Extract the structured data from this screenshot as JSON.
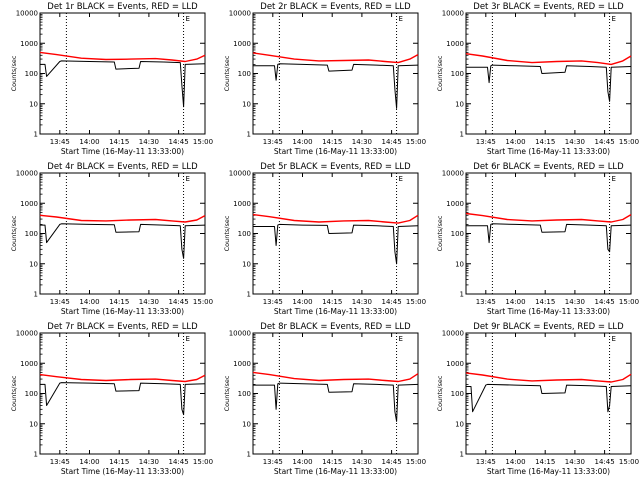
{
  "chart_data": [
    {
      "type": "line",
      "title": "Det 1r BLACK = Events, RED = LLD",
      "xlabel": "Start Time (16-May-11 13:33:00)",
      "ylabel": "Counts/sec",
      "yscale": "log",
      "ylim": [
        1,
        10000
      ],
      "y_tick_labels": [
        "1",
        "10",
        "100",
        "1000",
        "10000"
      ],
      "xlim": [
        0,
        100
      ],
      "x_tick_labels": [
        "13:45",
        "14:00",
        "14:15",
        "14:30",
        "14:45",
        "15:00"
      ],
      "x_tick_positions": [
        12,
        30,
        48,
        66,
        84,
        102
      ],
      "vlines": [
        16,
        87
      ],
      "marker": "E",
      "series": [
        {
          "name": "BLACK = Events",
          "color": "#000000",
          "x": [
            0,
            3,
            4,
            12,
            13,
            30,
            45,
            46,
            60,
            61,
            75,
            85,
            86,
            87,
            88,
            100
          ],
          "y": [
            200,
            200,
            80,
            250,
            260,
            250,
            240,
            140,
            150,
            250,
            240,
            230,
            40,
            8,
            200,
            210
          ]
        },
        {
          "name": "RED = LLD",
          "color": "#ff0000",
          "x": [
            0,
            10,
            25,
            40,
            55,
            70,
            80,
            88,
            95,
            100
          ],
          "y": [
            500,
            420,
            320,
            290,
            300,
            310,
            280,
            250,
            300,
            400
          ]
        }
      ]
    },
    {
      "type": "line",
      "title": "Det 2r BLACK = Events, RED = LLD",
      "xlabel": "Start Time (16-May-11 13:33:00)",
      "ylabel": "Counts/sec",
      "yscale": "log",
      "ylim": [
        1,
        10000
      ],
      "y_tick_labels": [
        "1",
        "10",
        "100",
        "1000",
        "10000"
      ],
      "xlim": [
        0,
        100
      ],
      "x_tick_labels": [
        "13:45",
        "14:00",
        "14:15",
        "14:30",
        "14:45",
        "15:00"
      ],
      "x_tick_positions": [
        12,
        30,
        48,
        66,
        84,
        102
      ],
      "vlines": [
        16,
        87
      ],
      "marker": "E",
      "series": [
        {
          "name": "BLACK = Events",
          "color": "#000000",
          "x": [
            0,
            13,
            14,
            15,
            16,
            30,
            45,
            46,
            60,
            61,
            75,
            85,
            86,
            87,
            88,
            100
          ],
          "y": [
            180,
            180,
            60,
            200,
            210,
            200,
            190,
            120,
            130,
            200,
            190,
            180,
            30,
            7,
            180,
            190
          ]
        },
        {
          "name": "RED = LLD",
          "color": "#ff0000",
          "x": [
            0,
            10,
            25,
            40,
            55,
            70,
            80,
            88,
            95,
            100
          ],
          "y": [
            480,
            400,
            300,
            260,
            270,
            280,
            250,
            230,
            300,
            420
          ]
        }
      ]
    },
    {
      "type": "line",
      "title": "Det 3r BLACK = Events, RED = LLD",
      "xlabel": "Start Time (16-May-11 13:33:00)",
      "ylabel": "Counts/sec",
      "yscale": "log",
      "ylim": [
        1,
        10000
      ],
      "y_tick_labels": [
        "1",
        "10",
        "100",
        "1000",
        "10000"
      ],
      "xlim": [
        0,
        100
      ],
      "x_tick_labels": [
        "13:45",
        "14:00",
        "14:15",
        "14:30",
        "14:45",
        "15:00"
      ],
      "x_tick_positions": [
        12,
        30,
        48,
        66,
        84,
        102
      ],
      "vlines": [
        16,
        87
      ],
      "marker": "E",
      "series": [
        {
          "name": "BLACK = Events",
          "color": "#000000",
          "x": [
            0,
            13,
            14,
            15,
            16,
            30,
            45,
            46,
            60,
            61,
            75,
            85,
            86,
            87,
            88,
            100
          ],
          "y": [
            160,
            160,
            50,
            180,
            190,
            180,
            170,
            100,
            110,
            180,
            170,
            160,
            25,
            12,
            160,
            170
          ]
        },
        {
          "name": "RED = LLD",
          "color": "#ff0000",
          "x": [
            0,
            10,
            25,
            40,
            55,
            70,
            80,
            88,
            95,
            100
          ],
          "y": [
            450,
            380,
            270,
            230,
            250,
            260,
            230,
            200,
            260,
            380
          ]
        }
      ]
    },
    {
      "type": "line",
      "title": "Det 4r BLACK = Events, RED = LLD",
      "xlabel": "Start Time (16-May-11 13:33:00)",
      "ylabel": "Counts/sec",
      "yscale": "log",
      "ylim": [
        1,
        10000
      ],
      "y_tick_labels": [
        "1",
        "10",
        "100",
        "1000",
        "10000"
      ],
      "xlim": [
        0,
        100
      ],
      "x_tick_labels": [
        "13:45",
        "14:00",
        "14:15",
        "14:30",
        "14:45",
        "15:00"
      ],
      "x_tick_positions": [
        12,
        30,
        48,
        66,
        84,
        102
      ],
      "vlines": [
        16,
        87
      ],
      "marker": "E",
      "series": [
        {
          "name": "BLACK = Events",
          "color": "#000000",
          "x": [
            0,
            3,
            4,
            12,
            13,
            30,
            45,
            46,
            60,
            61,
            75,
            85,
            86,
            87,
            88,
            100
          ],
          "y": [
            190,
            190,
            50,
            200,
            210,
            200,
            195,
            110,
            115,
            200,
            190,
            180,
            30,
            15,
            180,
            190
          ]
        },
        {
          "name": "RED = LLD",
          "color": "#ff0000",
          "x": [
            0,
            10,
            25,
            40,
            55,
            70,
            80,
            88,
            95,
            100
          ],
          "y": [
            400,
            350,
            270,
            260,
            280,
            290,
            260,
            240,
            280,
            390
          ]
        }
      ]
    },
    {
      "type": "line",
      "title": "Det 5r BLACK = Events, RED = LLD",
      "xlabel": "Start Time (16-May-11 13:33:00)",
      "ylabel": "Counts/sec",
      "yscale": "log",
      "ylim": [
        1,
        10000
      ],
      "y_tick_labels": [
        "1",
        "10",
        "100",
        "1000",
        "10000"
      ],
      "xlim": [
        0,
        100
      ],
      "x_tick_labels": [
        "13:45",
        "14:00",
        "14:15",
        "14:30",
        "14:45",
        "15:00"
      ],
      "x_tick_positions": [
        12,
        30,
        48,
        66,
        84,
        102
      ],
      "vlines": [
        16,
        87
      ],
      "marker": "E",
      "series": [
        {
          "name": "BLACK = Events",
          "color": "#000000",
          "x": [
            0,
            13,
            14,
            15,
            16,
            30,
            45,
            46,
            60,
            61,
            75,
            85,
            86,
            87,
            88,
            100
          ],
          "y": [
            170,
            170,
            40,
            190,
            200,
            190,
            185,
            100,
            105,
            190,
            180,
            170,
            25,
            10,
            170,
            180
          ]
        },
        {
          "name": "RED = LLD",
          "color": "#ff0000",
          "x": [
            0,
            10,
            25,
            40,
            55,
            70,
            80,
            88,
            95,
            100
          ],
          "y": [
            420,
            360,
            270,
            240,
            260,
            270,
            240,
            220,
            270,
            400
          ]
        }
      ]
    },
    {
      "type": "line",
      "title": "Det 6r BLACK = Events, RED = LLD",
      "xlabel": "Start Time (16-May-11 13:33:00)",
      "ylabel": "Counts/sec",
      "yscale": "log",
      "ylim": [
        1,
        10000
      ],
      "y_tick_labels": [
        "1",
        "10",
        "100",
        "1000",
        "10000"
      ],
      "xlim": [
        0,
        100
      ],
      "x_tick_labels": [
        "13:45",
        "14:00",
        "14:15",
        "14:30",
        "14:45",
        "15:00"
      ],
      "x_tick_positions": [
        12,
        30,
        48,
        66,
        84,
        102
      ],
      "vlines": [
        16,
        87
      ],
      "marker": "E",
      "series": [
        {
          "name": "BLACK = Events",
          "color": "#000000",
          "x": [
            0,
            13,
            14,
            15,
            16,
            30,
            45,
            46,
            60,
            61,
            75,
            85,
            86,
            87,
            88,
            100
          ],
          "y": [
            180,
            180,
            50,
            200,
            210,
            200,
            190,
            110,
            115,
            200,
            190,
            180,
            30,
            25,
            180,
            190
          ]
        },
        {
          "name": "RED = LLD",
          "color": "#ff0000",
          "x": [
            0,
            10,
            25,
            40,
            55,
            70,
            80,
            88,
            95,
            100
          ],
          "y": [
            460,
            390,
            290,
            260,
            280,
            290,
            260,
            240,
            290,
            420
          ]
        }
      ]
    },
    {
      "type": "line",
      "title": "Det 7r BLACK = Events, RED = LLD",
      "xlabel": "Start Time (16-May-11 13:33:00)",
      "ylabel": "Counts/sec",
      "yscale": "log",
      "ylim": [
        1,
        10000
      ],
      "y_tick_labels": [
        "1",
        "10",
        "100",
        "1000",
        "10000"
      ],
      "xlim": [
        0,
        100
      ],
      "x_tick_labels": [
        "13:45",
        "14:00",
        "14:15",
        "14:30",
        "14:45",
        "15:00"
      ],
      "x_tick_positions": [
        12,
        30,
        48,
        66,
        84,
        102
      ],
      "vlines": [
        16,
        87
      ],
      "marker": "E",
      "series": [
        {
          "name": "BLACK = Events",
          "color": "#000000",
          "x": [
            0,
            3,
            4,
            12,
            13,
            30,
            45,
            46,
            60,
            61,
            75,
            85,
            86,
            87,
            88,
            100
          ],
          "y": [
            200,
            200,
            40,
            220,
            230,
            220,
            210,
            120,
            125,
            220,
            210,
            200,
            30,
            20,
            200,
            210
          ]
        },
        {
          "name": "RED = LLD",
          "color": "#ff0000",
          "x": [
            0,
            10,
            25,
            40,
            55,
            70,
            80,
            88,
            95,
            100
          ],
          "y": [
            420,
            360,
            290,
            270,
            290,
            300,
            270,
            250,
            290,
            400
          ]
        }
      ]
    },
    {
      "type": "line",
      "title": "Det 8r BLACK = Events, RED = LLD",
      "xlabel": "Start Time (16-May-11 13:33:00)",
      "ylabel": "Counts/sec",
      "yscale": "log",
      "ylim": [
        1,
        10000
      ],
      "y_tick_labels": [
        "1",
        "10",
        "100",
        "1000",
        "10000"
      ],
      "xlim": [
        0,
        100
      ],
      "x_tick_labels": [
        "13:45",
        "14:00",
        "14:15",
        "14:30",
        "14:45",
        "15:00"
      ],
      "x_tick_positions": [
        12,
        30,
        48,
        66,
        84,
        102
      ],
      "vlines": [
        16,
        87
      ],
      "marker": "E",
      "series": [
        {
          "name": "BLACK = Events",
          "color": "#000000",
          "x": [
            0,
            13,
            14,
            15,
            16,
            30,
            45,
            46,
            60,
            61,
            75,
            85,
            86,
            87,
            88,
            100
          ],
          "y": [
            190,
            190,
            30,
            210,
            220,
            210,
            200,
            110,
            115,
            210,
            200,
            190,
            25,
            12,
            190,
            200
          ]
        },
        {
          "name": "RED = LLD",
          "color": "#ff0000",
          "x": [
            0,
            10,
            25,
            40,
            55,
            70,
            80,
            88,
            95,
            100
          ],
          "y": [
            500,
            420,
            310,
            270,
            290,
            300,
            270,
            250,
            300,
            450
          ]
        }
      ]
    },
    {
      "type": "line",
      "title": "Det 9r BLACK = Events, RED = LLD",
      "xlabel": "Start Time (16-May-11 13:33:00)",
      "ylabel": "Counts/sec",
      "yscale": "log",
      "ylim": [
        1,
        10000
      ],
      "y_tick_labels": [
        "1",
        "10",
        "100",
        "1000",
        "10000"
      ],
      "xlim": [
        0,
        100
      ],
      "x_tick_labels": [
        "13:45",
        "14:00",
        "14:15",
        "14:30",
        "14:45",
        "15:00"
      ],
      "x_tick_positions": [
        12,
        30,
        48,
        66,
        84,
        102
      ],
      "vlines": [
        16,
        87
      ],
      "marker": "E",
      "series": [
        {
          "name": "BLACK = Events",
          "color": "#000000",
          "x": [
            0,
            3,
            4,
            12,
            13,
            30,
            45,
            46,
            60,
            61,
            75,
            85,
            86,
            87,
            88,
            100
          ],
          "y": [
            170,
            170,
            25,
            190,
            200,
            190,
            180,
            100,
            105,
            190,
            180,
            170,
            25,
            40,
            170,
            180
          ]
        },
        {
          "name": "RED = LLD",
          "color": "#ff0000",
          "x": [
            0,
            10,
            25,
            40,
            55,
            70,
            80,
            88,
            95,
            100
          ],
          "y": [
            480,
            410,
            300,
            260,
            280,
            290,
            260,
            240,
            290,
            430
          ]
        }
      ]
    }
  ]
}
